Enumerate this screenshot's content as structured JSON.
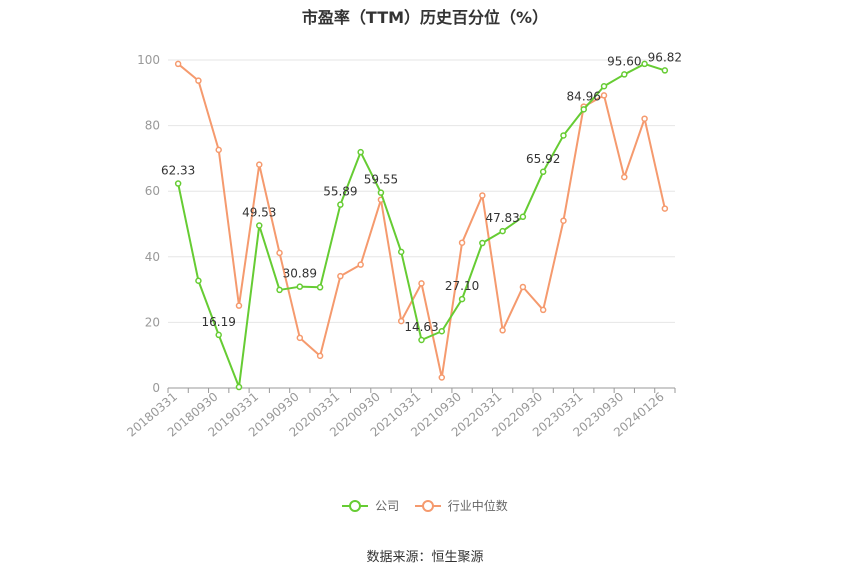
{
  "chart_data": {
    "type": "line",
    "title": "市盈率（TTM）历史百分位（%）",
    "source": "数据来源：恒生聚源",
    "ylim": [
      0,
      100
    ],
    "yticks": [
      "0",
      "20",
      "40",
      "60",
      "80",
      "100"
    ],
    "xtick_labels": [
      "20180331",
      "20180930",
      "20190331",
      "20190930",
      "20200331",
      "20200930",
      "20210331",
      "20210930",
      "20220331",
      "20220930",
      "20230331",
      "20230930",
      "20240126"
    ],
    "grid": true,
    "legend_position": "bottom",
    "series": [
      {
        "name": "公司",
        "color": "#66cc33",
        "values": [
          62.33,
          32.7,
          16.19,
          0.3,
          49.53,
          29.9,
          30.89,
          30.7,
          55.89,
          71.9,
          59.55,
          41.5,
          14.63,
          17.3,
          27.1,
          44.2,
          47.83,
          52.2,
          65.92,
          77.0,
          84.96,
          92.0,
          95.6,
          98.8,
          96.82
        ],
        "labels": [
          "62.33",
          "",
          "16.19",
          "",
          "49.53",
          "",
          "30.89",
          "",
          "55.89",
          "",
          "59.55",
          "",
          "14.63",
          "",
          "27.10",
          "",
          "47.83",
          "",
          "65.92",
          "",
          "84.96",
          "",
          "95.60",
          "",
          "96.82"
        ]
      },
      {
        "name": "行业中位数",
        "color": "#f59a6e",
        "values": [
          98.8,
          93.7,
          72.6,
          25.1,
          68.1,
          41.2,
          15.3,
          9.8,
          34.1,
          37.6,
          57.4,
          20.4,
          31.9,
          3.2,
          44.3,
          58.7,
          17.6,
          30.8,
          23.8,
          51.0,
          85.8,
          89.2,
          64.3,
          82.1,
          54.7
        ]
      }
    ]
  }
}
